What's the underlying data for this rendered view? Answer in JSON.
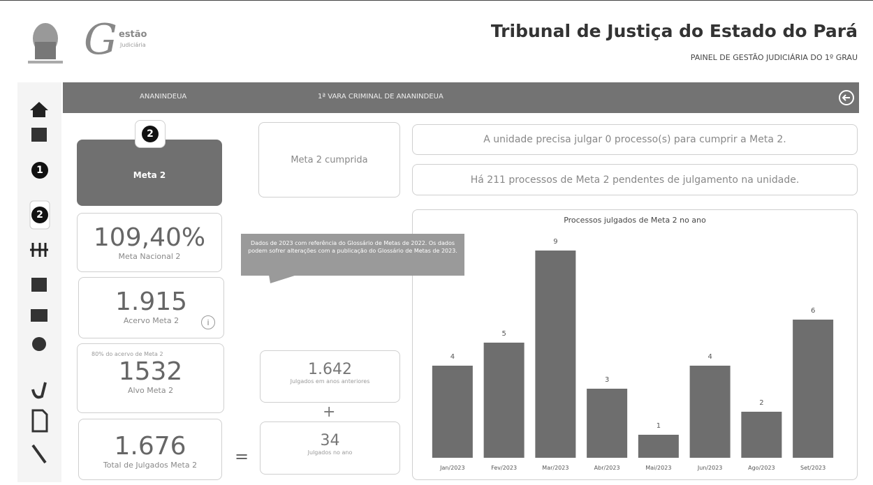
{
  "header": {
    "logo_initial": "G",
    "logo_word": "estão",
    "logo_sub": "Judiciária",
    "title": "Tribunal de Justiça do Estado do Pará",
    "subtitle": "PAINEL DE GESTÃO JUDICIÁRIA DO 1º GRAU"
  },
  "sidebar": {
    "badges": [
      "1",
      "2"
    ]
  },
  "nav": {
    "comarca": "ANANINDEUA",
    "vara": "1ª VARA CRIMINAL DE ANANINDEUA"
  },
  "meta_card": {
    "badge": "2",
    "label": "Meta 2"
  },
  "status": "Meta 2 cumprida",
  "messages": [
    "A unidade precisa julgar 0 processo(s) para cumprir a Meta 2.",
    "Há 211 processos de Meta 2 pendentes de julgamento na unidade."
  ],
  "kpis": {
    "percent": {
      "value": "109,40%",
      "label": "Meta Nacional 2"
    },
    "acervo": {
      "value": "1.915",
      "label": "Acervo Meta 2",
      "info": "i"
    },
    "alvo": {
      "note": "80% do acervo de Meta 2",
      "value": "1532",
      "label": "Alvo Meta 2"
    },
    "total": {
      "value": "1.676",
      "label": "Total de Julgados Meta 2"
    },
    "equals": "=",
    "anteriores": {
      "value": "1.642",
      "label": "Julgados em anos anteriores"
    },
    "plus": "+",
    "ano": {
      "value": "34",
      "label": "Julgados no ano"
    }
  },
  "tooltip": "Dados de 2023 com referência do Glossário de Metas de 2022. Os dados podem sofrer alterações com a publicação do Glossário de Metas de 2023.",
  "chart": {
    "type": "bar",
    "title": "Processos julgados de Meta 2 no ano",
    "categories": [
      "Jan/2023",
      "Fev/2023",
      "Mar/2023",
      "Abr/2023",
      "Mai/2023",
      "Jun/2023",
      "Ago/2023",
      "Set/2023"
    ],
    "values": [
      4,
      5,
      9,
      3,
      1,
      4,
      2,
      6
    ],
    "color": "#6e6e6e"
  }
}
